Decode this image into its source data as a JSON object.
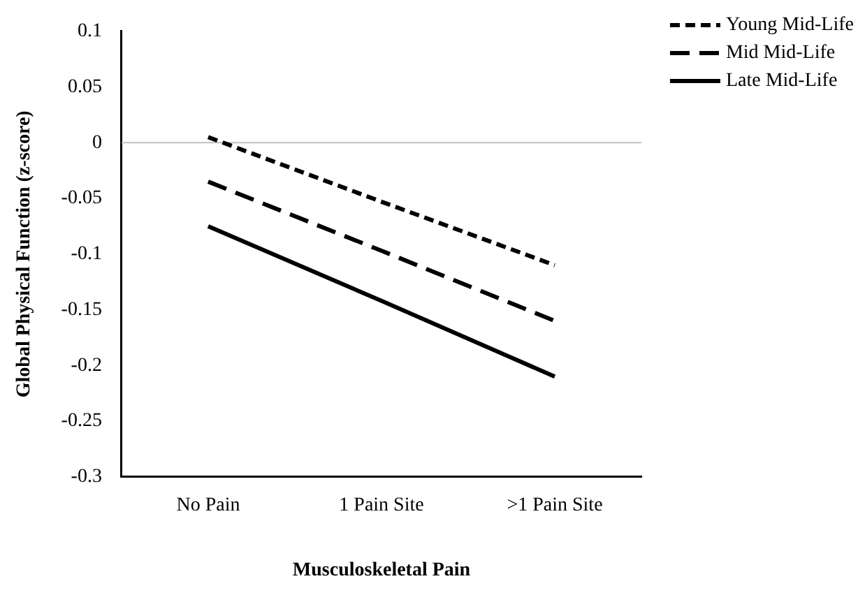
{
  "chart_data": {
    "type": "line",
    "xlabel": "Musculoskeletal Pain",
    "ylabel": "Global Physical Function (z-score)",
    "categories": [
      "No Pain",
      "1 Pain Site",
      ">1 Pain Site"
    ],
    "series": [
      {
        "name": "Young Mid-Life",
        "color": "#000000",
        "line_style": "dotted",
        "values": [
          0.005,
          -0.053,
          -0.11
        ]
      },
      {
        "name": "Mid Mid-Life",
        "color": "#000000",
        "line_style": "dashed",
        "values": [
          -0.035,
          -0.097,
          -0.16
        ]
      },
      {
        "name": "Late Mid-Life",
        "color": "#000000",
        "line_style": "solid",
        "values": [
          -0.075,
          -0.142,
          -0.21
        ]
      }
    ],
    "ylim": [
      -0.3,
      0.1
    ],
    "yticks": [
      -0.3,
      -0.25,
      -0.2,
      -0.15,
      -0.1,
      -0.05,
      0,
      0.05,
      0.1
    ],
    "ref_lines": [
      {
        "axis": "y",
        "value": 0,
        "color": "#bfbfbf"
      }
    ],
    "grid": false,
    "legend": "top right",
    "marker": "none"
  }
}
